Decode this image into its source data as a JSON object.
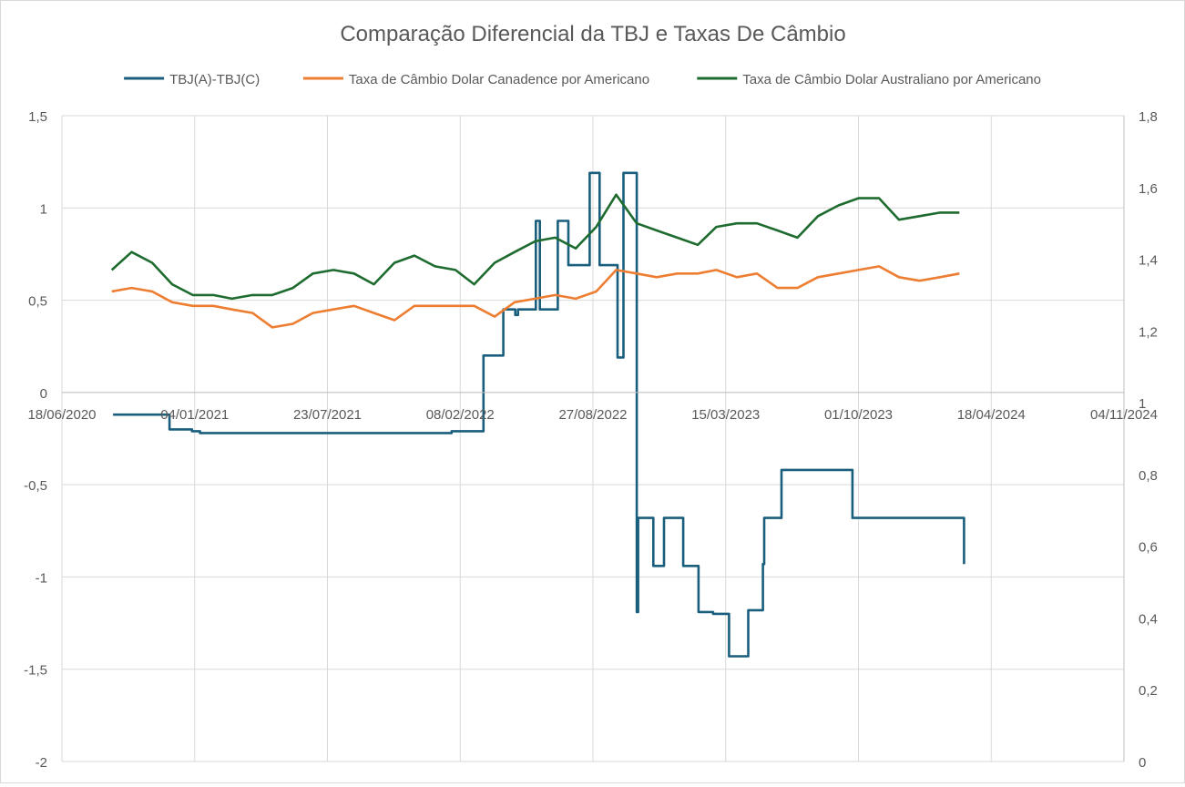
{
  "chart_data": {
    "type": "line",
    "title": "Comparação Diferencial da TBJ e Taxas De Câmbio",
    "xlabel": "",
    "ylabel": "",
    "y_left": {
      "range": [
        -2,
        1.5
      ],
      "ticks": [
        "1,5",
        "1",
        "0,5",
        "0",
        "-0,5",
        "-1",
        "-1,5",
        "-2"
      ],
      "tick_values": [
        1.5,
        1,
        0.5,
        0,
        -0.5,
        -1,
        -1.5,
        -2
      ]
    },
    "y_right": {
      "range": [
        0,
        1.8
      ],
      "ticks": [
        "1,8",
        "1,6",
        "1,4",
        "1,2",
        "1",
        "0,8",
        "0,6",
        "0,4",
        "0,2",
        "0"
      ],
      "tick_values": [
        1.8,
        1.6,
        1.4,
        1.2,
        1.0,
        0.8,
        0.6,
        0.4,
        0.2,
        0
      ]
    },
    "x_axis": {
      "ticks": [
        "18/06/2020",
        "04/01/2021",
        "23/07/2021",
        "08/02/2022",
        "27/08/2022",
        "15/03/2023",
        "01/10/2023",
        "18/04/2024",
        "04/11/2024"
      ],
      "tick_dates": [
        "2020-06-18",
        "2021-01-04",
        "2021-07-23",
        "2022-02-08",
        "2022-08-27",
        "2023-03-15",
        "2023-10-01",
        "2024-04-18",
        "2024-11-04"
      ],
      "crosses_at_y": 0
    },
    "grid": "vertical-and-horizontal",
    "legend_position": "top",
    "series": [
      {
        "name": "TBJ(A)-TBJ(C)",
        "axis": "left",
        "color": "#1a5e7e",
        "step": true,
        "x": [
          "2020-09-03",
          "2020-11-25",
          "2020-11-27",
          "2020-12-31",
          "2021-01-04",
          "2021-01-12",
          "2022-01-07",
          "2022-01-26",
          "2022-02-25",
          "2022-03-15",
          "2022-03-31",
          "2022-04-14",
          "2022-04-22",
          "2022-05-02",
          "2022-05-06",
          "2022-05-20",
          "2022-06-02",
          "2022-06-06",
          "2022-06-08",
          "2022-06-28",
          "2022-07-05",
          "2022-07-07",
          "2022-07-13",
          "2022-07-15",
          "2022-07-21",
          "2022-07-28",
          "2022-07-30",
          "2022-08-20",
          "2022-08-22",
          "2022-09-06",
          "2022-09-10",
          "2022-09-19",
          "2022-10-03",
          "2022-10-10",
          "2022-10-12",
          "2022-10-14",
          "2022-10-18",
          "2022-11-01",
          "2022-11-03",
          "2022-11-06",
          "2022-11-26",
          "2022-12-08",
          "2022-12-12",
          "2023-01-10",
          "2023-02-02",
          "2023-02-24",
          "2023-03-20",
          "2023-04-18",
          "2023-05-10",
          "2023-05-12",
          "2023-06-07",
          "2023-09-22",
          "2024-03-08"
        ],
        "y": [
          -0.12,
          -0.12,
          -0.2,
          -0.21,
          -0.21,
          -0.22,
          -0.22,
          -0.21,
          -0.21,
          0.2,
          0.2,
          0.45,
          0.45,
          0.42,
          0.45,
          0.45,
          0.93,
          0.93,
          0.45,
          0.45,
          0.93,
          0.93,
          0.93,
          0.93,
          0.69,
          0.69,
          0.69,
          0.69,
          1.19,
          0.69,
          0.69,
          0.69,
          0.19,
          0.19,
          1.19,
          1.19,
          1.19,
          -1.19,
          -0.68,
          -0.68,
          -0.94,
          -0.94,
          -0.68,
          -0.94,
          -1.19,
          -1.2,
          -1.43,
          -1.18,
          -0.93,
          -0.68,
          -0.42,
          -0.68,
          -0.93
        ]
      },
      {
        "name": "Taxa de Câmbio Dolar Canadence por Americano",
        "axis": "right",
        "color": "#ed7d31",
        "x": [
          "2020-09-01",
          "2020-10-01",
          "2020-11-01",
          "2020-12-01",
          "2021-01-01",
          "2021-02-01",
          "2021-03-01",
          "2021-04-01",
          "2021-05-01",
          "2021-06-01",
          "2021-07-01",
          "2021-08-01",
          "2021-09-01",
          "2021-10-01",
          "2021-11-01",
          "2021-12-01",
          "2022-01-01",
          "2022-02-01",
          "2022-03-01",
          "2022-04-01",
          "2022-05-01",
          "2022-06-01",
          "2022-07-01",
          "2022-08-01",
          "2022-09-01",
          "2022-10-01",
          "2022-11-01",
          "2022-12-01",
          "2023-01-01",
          "2023-02-01",
          "2023-03-01",
          "2023-04-01",
          "2023-05-01",
          "2023-06-01",
          "2023-07-01",
          "2023-08-01",
          "2023-09-01",
          "2023-10-01",
          "2023-11-01",
          "2023-12-01",
          "2024-01-01",
          "2024-02-01",
          "2024-03-01"
        ],
        "y": [
          1.31,
          1.32,
          1.31,
          1.28,
          1.27,
          1.27,
          1.26,
          1.25,
          1.21,
          1.22,
          1.25,
          1.26,
          1.27,
          1.25,
          1.23,
          1.27,
          1.27,
          1.27,
          1.27,
          1.24,
          1.28,
          1.29,
          1.3,
          1.29,
          1.31,
          1.37,
          1.36,
          1.35,
          1.36,
          1.36,
          1.37,
          1.35,
          1.36,
          1.32,
          1.32,
          1.35,
          1.36,
          1.37,
          1.38,
          1.35,
          1.34,
          1.35,
          1.36
        ]
      },
      {
        "name": "Taxa de Câmbio Dolar Australiano por Americano",
        "axis": "right",
        "color": "#1e6b2f",
        "x": [
          "2020-09-01",
          "2020-10-01",
          "2020-11-01",
          "2020-12-01",
          "2021-01-01",
          "2021-02-01",
          "2021-03-01",
          "2021-04-01",
          "2021-05-01",
          "2021-06-01",
          "2021-07-01",
          "2021-08-01",
          "2021-09-01",
          "2021-10-01",
          "2021-11-01",
          "2021-12-01",
          "2022-01-01",
          "2022-02-01",
          "2022-03-01",
          "2022-04-01",
          "2022-05-01",
          "2022-06-01",
          "2022-07-01",
          "2022-08-01",
          "2022-09-01",
          "2022-10-01",
          "2022-11-01",
          "2022-12-01",
          "2023-01-01",
          "2023-02-01",
          "2023-03-01",
          "2023-04-01",
          "2023-05-01",
          "2023-06-01",
          "2023-07-01",
          "2023-08-01",
          "2023-09-01",
          "2023-10-01",
          "2023-11-01",
          "2023-12-01",
          "2024-01-01",
          "2024-02-01",
          "2024-03-01"
        ],
        "y": [
          1.37,
          1.42,
          1.39,
          1.33,
          1.3,
          1.3,
          1.29,
          1.3,
          1.3,
          1.32,
          1.36,
          1.37,
          1.36,
          1.33,
          1.39,
          1.41,
          1.38,
          1.37,
          1.33,
          1.39,
          1.42,
          1.45,
          1.46,
          1.43,
          1.49,
          1.58,
          1.5,
          1.48,
          1.46,
          1.44,
          1.49,
          1.5,
          1.5,
          1.48,
          1.46,
          1.52,
          1.55,
          1.57,
          1.57,
          1.51,
          1.52,
          1.53,
          1.53
        ]
      }
    ]
  }
}
